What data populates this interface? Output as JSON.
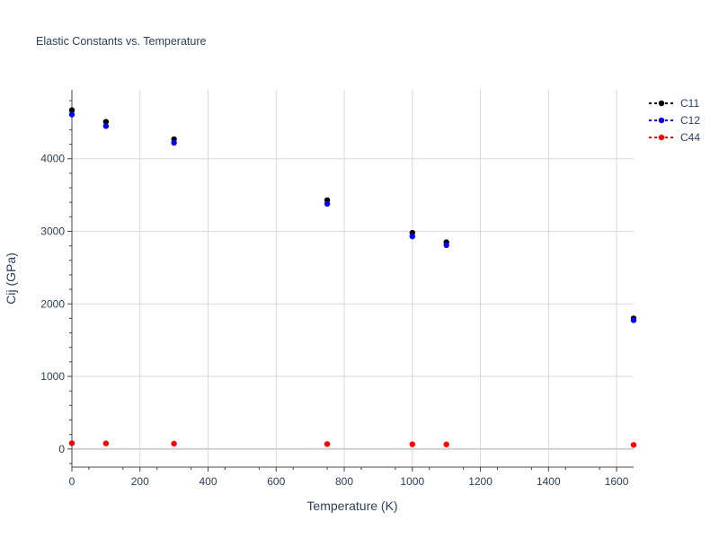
{
  "chart_data": {
    "type": "scatter",
    "title": "Elastic Constants vs. Temperature",
    "xlabel": "Temperature (K)",
    "ylabel": "Cij (GPa)",
    "xlim": [
      0,
      1650
    ],
    "ylim": [
      -250,
      4950
    ],
    "x_ticks": [
      0,
      200,
      400,
      600,
      800,
      1000,
      1200,
      1400,
      1600
    ],
    "y_ticks": [
      0,
      1000,
      2000,
      3000,
      4000
    ],
    "grid": true,
    "legend_position": "top-right",
    "series": [
      {
        "name": "C11",
        "color": "#000000",
        "x": [
          0,
          100,
          300,
          750,
          1000,
          1100,
          1650
        ],
        "y": [
          4670,
          4510,
          4270,
          3430,
          2980,
          2850,
          1800
        ]
      },
      {
        "name": "C12",
        "color": "#0000ff",
        "x": [
          0,
          100,
          300,
          750,
          1000,
          1100,
          1650
        ],
        "y": [
          4610,
          4450,
          4220,
          3380,
          2930,
          2810,
          1775
        ]
      },
      {
        "name": "C44",
        "color": "#ff0000",
        "x": [
          0,
          100,
          300,
          750,
          1000,
          1100,
          1650
        ],
        "y": [
          80,
          77,
          74,
          68,
          65,
          63,
          56
        ]
      }
    ]
  }
}
